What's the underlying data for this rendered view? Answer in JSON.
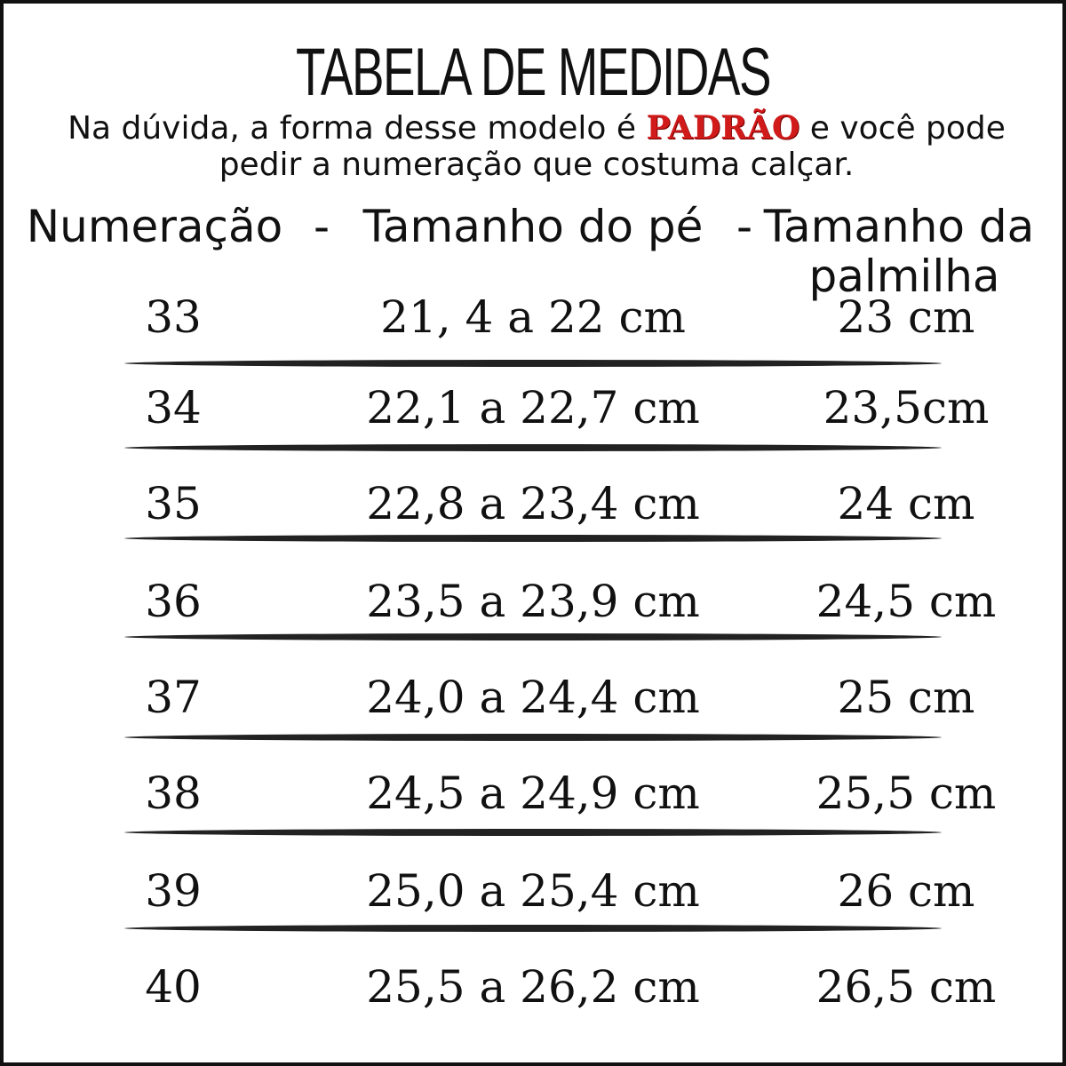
{
  "title": "TABELA DE MEDIDAS",
  "subtitle": {
    "before": "Na dúvida, a forma desse modelo é ",
    "highlight": "PADRÃO",
    "after": " e você pode",
    "line2": "pedir a numeração que costuma calçar.",
    "highlight_color": "#d11a1a"
  },
  "headers": {
    "col1": "Numeração",
    "sep1": "-",
    "col2": "Tamanho do pé",
    "sep2": "-",
    "col3_line1": "Tamanho da",
    "col3_line2": "palmilha"
  },
  "rows": [
    {
      "size": "33",
      "foot": "21, 4 a 22 cm",
      "insole": "23 cm"
    },
    {
      "size": "34",
      "foot": "22,1 a 22,7 cm",
      "insole": "23,5cm"
    },
    {
      "size": "35",
      "foot": "22,8 a 23,4 cm",
      "insole": "24 cm"
    },
    {
      "size": "36",
      "foot": "23,5 a 23,9 cm",
      "insole": "24,5 cm"
    },
    {
      "size": "37",
      "foot": "24,0 a 24,4 cm",
      "insole": "25 cm"
    },
    {
      "size": "38",
      "foot": "24,5 a 24,9 cm",
      "insole": "25,5 cm"
    },
    {
      "size": "39",
      "foot": "25,0 a 25,4 cm",
      "insole": "26 cm"
    },
    {
      "size": "40",
      "foot": "25,5 a 26,2 cm",
      "insole": "26,5 cm"
    }
  ]
}
